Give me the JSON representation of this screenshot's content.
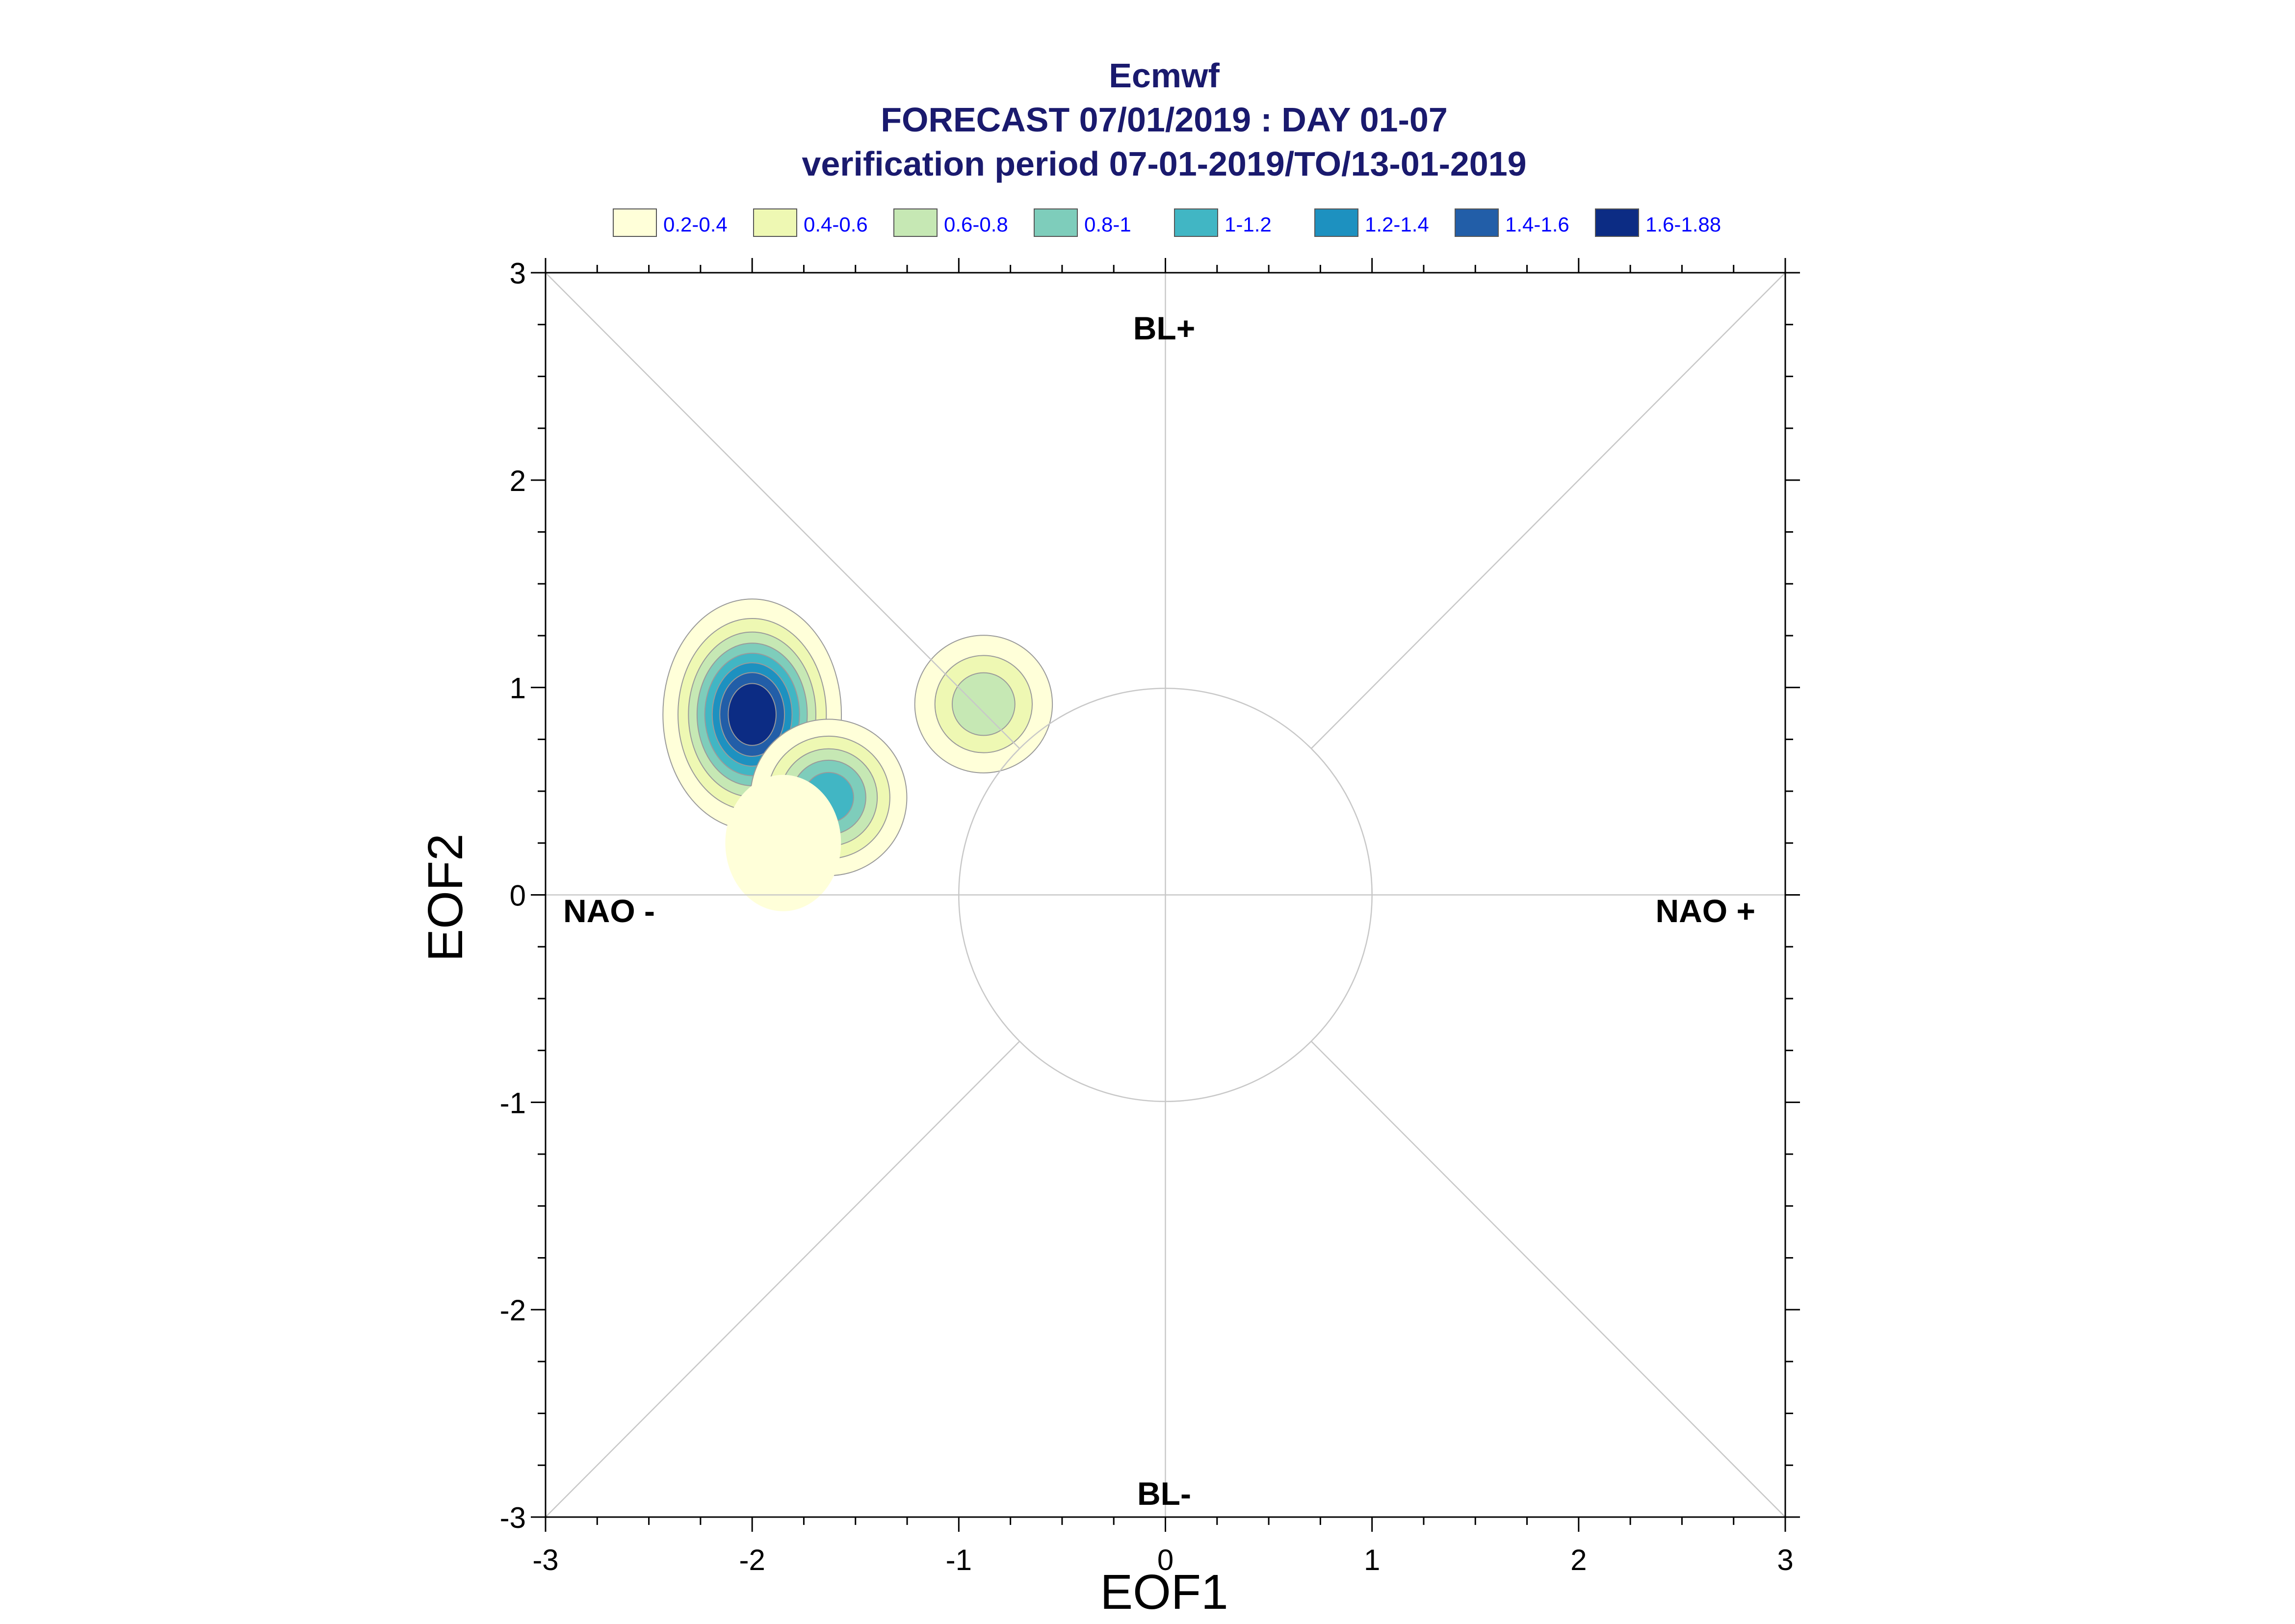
{
  "chart_data": {
    "type": "contour",
    "title": "Ecmwf",
    "subtitle": "FORECAST 07/01/2019 : DAY 01-07",
    "subtitle2": "verification period 07-01-2019/TO/13-01-2019",
    "xlabel": "EOF1",
    "ylabel": "EOF2",
    "xlim": [
      -3,
      3
    ],
    "ylim": [
      -3,
      3
    ],
    "xticks": [
      "-3",
      "-2",
      "-1",
      "0",
      "1",
      "2",
      "3"
    ],
    "yticks": [
      "-3",
      "-2",
      "-1",
      "0",
      "1",
      "2",
      "3"
    ],
    "legend_position": "top",
    "legend": [
      {
        "label": "0.2-0.4",
        "color": "#ffffd9"
      },
      {
        "label": "0.4-0.6",
        "color": "#eef8b3"
      },
      {
        "label": "0.6-0.8",
        "color": "#c6e8b4"
      },
      {
        "label": "0.8-1",
        "color": "#7ecdbb"
      },
      {
        "label": "1-1.2",
        "color": "#41b6c4"
      },
      {
        "label": "1.2-1.4",
        "color": "#1d91c0"
      },
      {
        "label": "1.4-1.6",
        "color": "#225ea8"
      },
      {
        "label": "1.6-1.88",
        "color": "#0c2c84"
      }
    ],
    "regimes": {
      "top": "BL+",
      "bottom": "BL-",
      "left": "NAO -",
      "right": "NAO +"
    },
    "reference_circle_radius": 1,
    "density_peaks": [
      {
        "x": -2.0,
        "y": 0.87,
        "max": 1.88
      },
      {
        "x": -1.63,
        "y": 0.47,
        "max": 1.2
      },
      {
        "x": -0.88,
        "y": 0.92,
        "max": 0.8
      }
    ]
  }
}
